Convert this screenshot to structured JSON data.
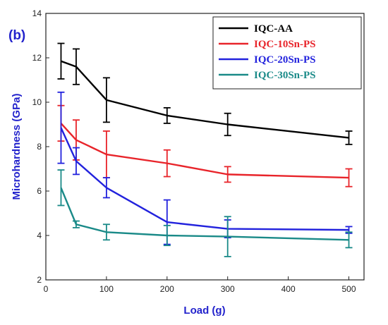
{
  "chart_data": {
    "type": "line",
    "panel_label": "(b)",
    "xlabel": "Load (g)",
    "ylabel": "Microhardness (GPa)",
    "xlim": [
      0,
      525
    ],
    "ylim": [
      2,
      14
    ],
    "xticks": [
      0,
      100,
      200,
      300,
      400,
      500
    ],
    "yticks": [
      2,
      4,
      6,
      8,
      10,
      12,
      14
    ],
    "legend_position": "top-right",
    "x": [
      25,
      50,
      100,
      200,
      300,
      500
    ],
    "series": [
      {
        "name": "IQC-AA",
        "color": "#000000",
        "values": [
          11.85,
          11.6,
          10.1,
          9.4,
          9.0,
          8.4
        ],
        "errors": [
          0.8,
          0.8,
          1.0,
          0.35,
          0.5,
          0.3
        ]
      },
      {
        "name": "IQC-10Sn-PS",
        "color": "#e8242a",
        "values": [
          9.05,
          8.3,
          7.65,
          7.25,
          6.75,
          6.6
        ],
        "errors": [
          0.8,
          0.9,
          1.05,
          0.6,
          0.35,
          0.4
        ]
      },
      {
        "name": "IQC-20Sn-PS",
        "color": "#2222dd",
        "values": [
          8.85,
          7.35,
          6.15,
          4.6,
          4.3,
          4.25
        ],
        "errors": [
          1.6,
          0.6,
          0.45,
          1.0,
          0.4,
          0.15
        ]
      },
      {
        "name": "IQC-30Sn-PS",
        "color": "#1a8a88",
        "values": [
          6.15,
          4.5,
          4.15,
          4.0,
          3.95,
          3.8
        ],
        "errors": [
          0.8,
          0.15,
          0.35,
          0.45,
          0.9,
          0.35
        ]
      }
    ],
    "colors": {
      "panel_label": "#2222cc",
      "axis_title": "#2222cc",
      "axis": "#222222"
    }
  }
}
